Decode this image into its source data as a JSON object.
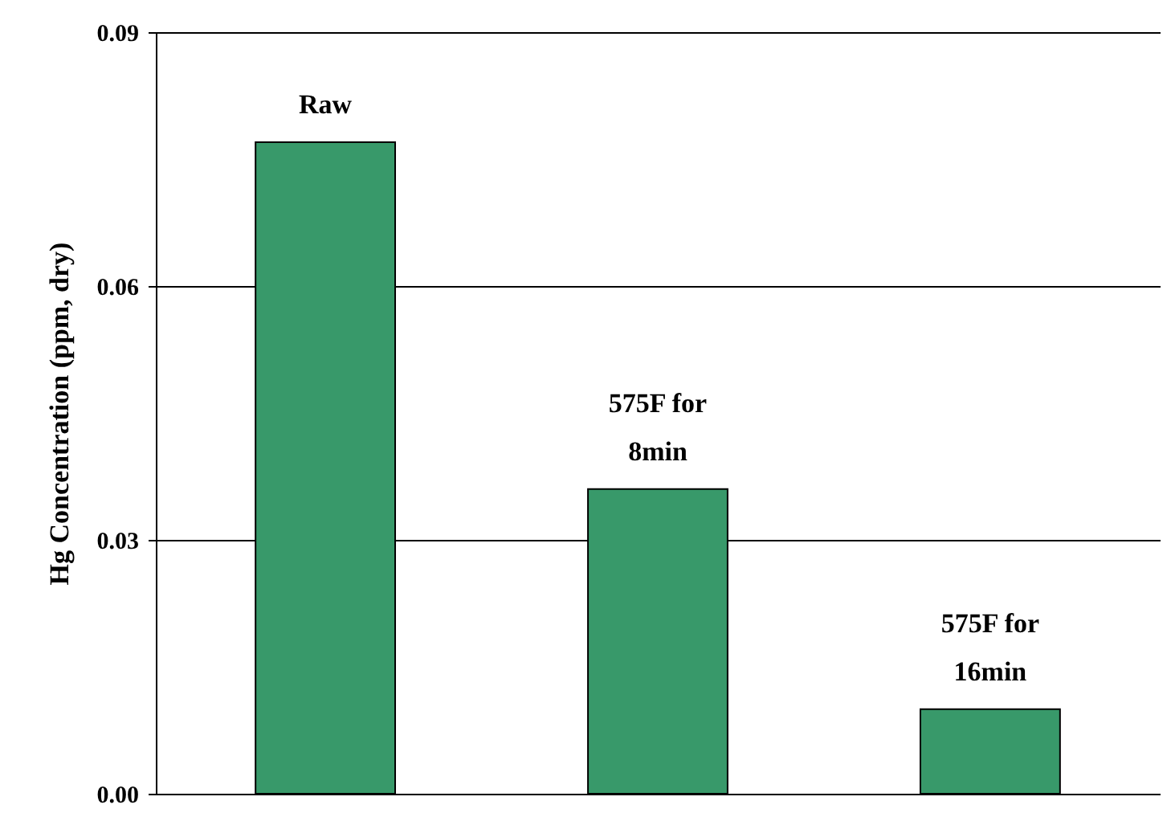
{
  "chart_data": {
    "type": "bar",
    "ylabel": "Hg Concentration (ppm, dry)",
    "categories": [
      "Raw",
      "575F for 8min",
      "575F for 16min"
    ],
    "values": [
      0.077,
      0.036,
      0.01
    ],
    "color": "#38996a",
    "ylim": [
      0,
      0.09
    ],
    "yticks": [
      {
        "value": 0,
        "label": "0.00"
      },
      0.03,
      0.06,
      0.09
    ],
    "grid": "y"
  }
}
